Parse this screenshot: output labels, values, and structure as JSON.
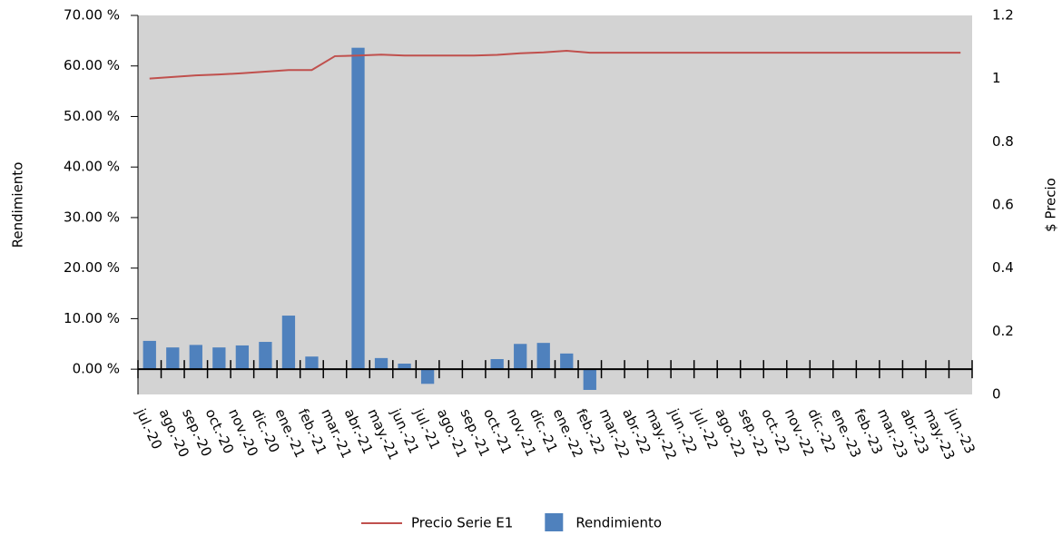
{
  "chart_data": {
    "type": "bar",
    "y_label": "Rendimiento",
    "y2_label": "$ Precio",
    "categories": [
      "jul.-20",
      "ago.-20",
      "sep.-20",
      "oct.-20",
      "nov.-20",
      "dic.-20",
      "ene.-21",
      "feb.-21",
      "mar.-21",
      "abr.-21",
      "may.-21",
      "jun.-21",
      "jul.-21",
      "ago.-21",
      "sep.-21",
      "oct.-21",
      "nov.-21",
      "dic.-21",
      "ene.-22",
      "feb.-22",
      "mar.-22",
      "abr.-22",
      "may.-22",
      "jun.-22",
      "jul.-22",
      "ago.-22",
      "sep.-22",
      "oct.-22",
      "nov.-22",
      "dic.-22",
      "ene.-23",
      "feb.-23",
      "mar.-23",
      "abr.-23",
      "may.-23",
      "jun.-23"
    ],
    "series": [
      {
        "name": "Precio Serie E1",
        "type": "line",
        "axis": "y2",
        "color": "#c0504d",
        "values": [
          1.0,
          1.005,
          1.01,
          1.013,
          1.017,
          1.022,
          1.027,
          1.027,
          1.071,
          1.073,
          1.076,
          1.073,
          1.073,
          1.073,
          1.073,
          1.075,
          1.08,
          1.083,
          1.088,
          1.082,
          1.082,
          1.082,
          1.082,
          1.082,
          1.082,
          1.082,
          1.082,
          1.082,
          1.082,
          1.082,
          1.082,
          1.082,
          1.082,
          1.082,
          1.082,
          1.082
        ]
      },
      {
        "name": "Rendimiento",
        "type": "bar",
        "axis": "y",
        "color": "#4f81bd",
        "values": [
          5.6,
          4.3,
          4.8,
          4.3,
          4.7,
          5.4,
          10.6,
          2.5,
          null,
          63.6,
          2.2,
          1.1,
          -2.9,
          null,
          null,
          2.0,
          5.0,
          5.2,
          3.1,
          -4.1,
          null,
          null,
          null,
          null,
          null,
          null,
          null,
          null,
          null,
          null,
          null,
          null,
          null,
          null,
          null,
          null
        ]
      }
    ],
    "ylim": [
      -5,
      70
    ],
    "yticks": [
      {
        "value": 0,
        "label": "0.00 %"
      },
      {
        "value": 10,
        "label": "10.00 %"
      },
      {
        "value": 20,
        "label": "20.00 %"
      },
      {
        "value": 30,
        "label": "30.00 %"
      },
      {
        "value": 40,
        "label": "40.00 %"
      },
      {
        "value": 50,
        "label": "50.00 %"
      },
      {
        "value": 60,
        "label": "60.00 %"
      },
      {
        "value": 70,
        "label": "70.00 %"
      }
    ],
    "y2lim": [
      0,
      1.2
    ],
    "y2ticks": [
      0,
      0.2,
      0.4,
      0.6,
      0.8,
      1,
      1.2
    ],
    "plot_background": "#d3d3d3",
    "legend": "bottom"
  }
}
